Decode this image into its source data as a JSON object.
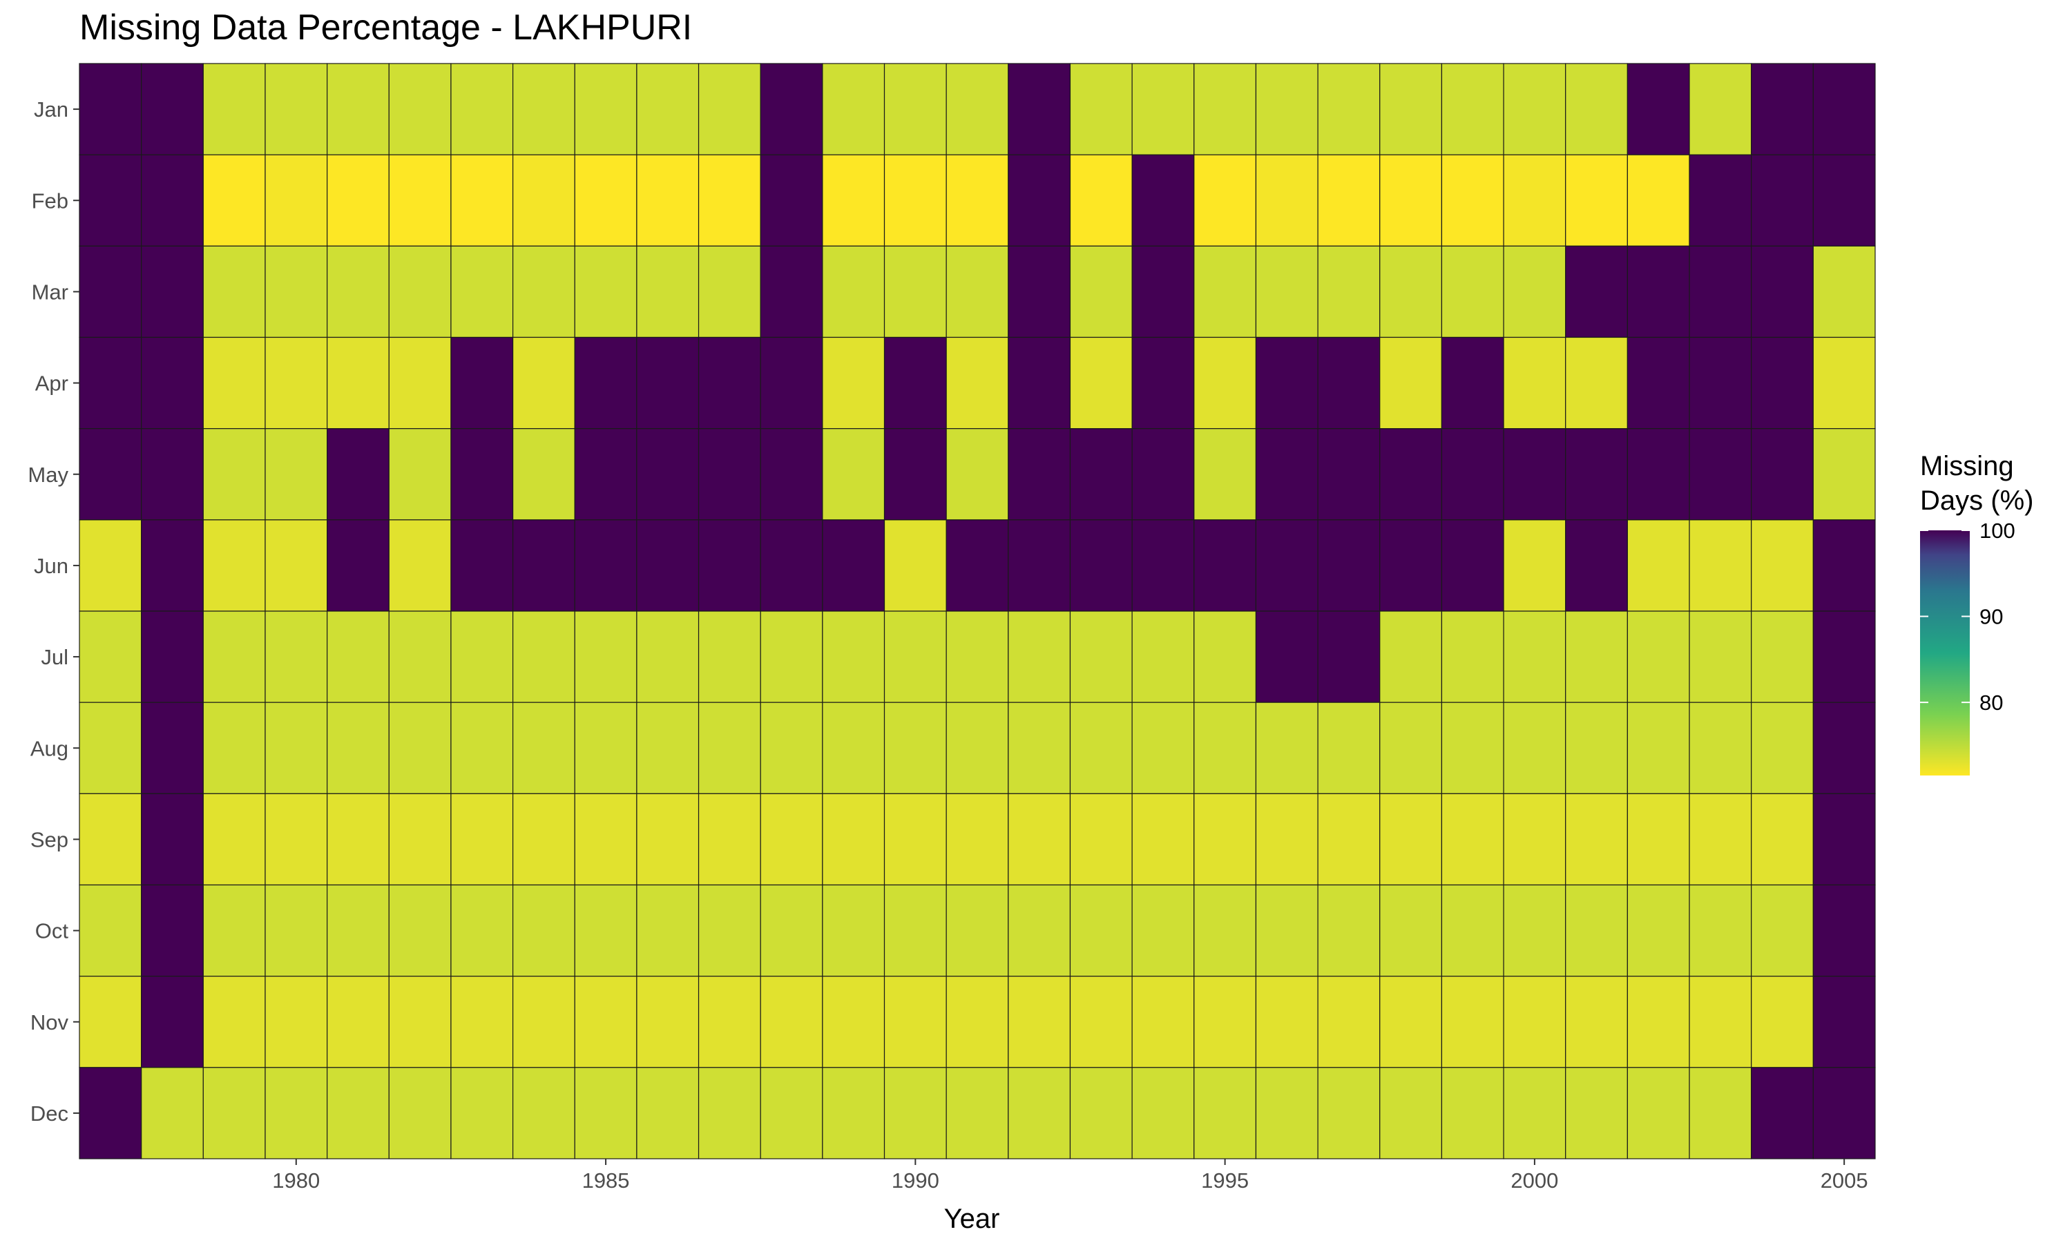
{
  "chart_data": {
    "type": "heatmap",
    "title": "Missing Data Percentage - LAKHPURI",
    "xlabel": "Year",
    "ylabel": "",
    "x": [
      1977,
      1978,
      1979,
      1980,
      1981,
      1982,
      1983,
      1984,
      1985,
      1986,
      1987,
      1988,
      1989,
      1990,
      1991,
      1992,
      1993,
      1994,
      1995,
      1996,
      1997,
      1998,
      1999,
      2000,
      2001,
      2002,
      2003,
      2004,
      2005
    ],
    "x_ticks": [
      1980,
      1985,
      1990,
      1995,
      2000,
      2005
    ],
    "y": [
      "Jan",
      "Feb",
      "Mar",
      "Apr",
      "May",
      "Jun",
      "Jul",
      "Aug",
      "Sep",
      "Oct",
      "Nov",
      "Dec"
    ],
    "values": [
      [
        100,
        100,
        74,
        74,
        74,
        74,
        74,
        74,
        74,
        74,
        74,
        100,
        74,
        74,
        74,
        100,
        74,
        74,
        74,
        74,
        74,
        74,
        74,
        74,
        74,
        100,
        74,
        100,
        100
      ],
      [
        100,
        100,
        71,
        72,
        71,
        71,
        71,
        72,
        71,
        71,
        71,
        100,
        71,
        71,
        71,
        100,
        71,
        100,
        71,
        72,
        71,
        71,
        71,
        72,
        71,
        71,
        100,
        100,
        100
      ],
      [
        100,
        100,
        74,
        74,
        74,
        74,
        74,
        74,
        74,
        74,
        74,
        100,
        74,
        74,
        74,
        100,
        74,
        100,
        74,
        74,
        74,
        74,
        74,
        74,
        100,
        100,
        100,
        100,
        74
      ],
      [
        100,
        100,
        73,
        73,
        73,
        73,
        100,
        73,
        100,
        100,
        100,
        100,
        73,
        100,
        73,
        100,
        73,
        100,
        73,
        100,
        100,
        73,
        100,
        73,
        73,
        100,
        100,
        100,
        73
      ],
      [
        100,
        100,
        74,
        74,
        100,
        74,
        100,
        74,
        100,
        100,
        100,
        100,
        74,
        100,
        74,
        100,
        100,
        100,
        74,
        100,
        100,
        100,
        100,
        100,
        100,
        100,
        100,
        100,
        74
      ],
      [
        73,
        100,
        73,
        73,
        100,
        73,
        100,
        100,
        100,
        100,
        100,
        100,
        100,
        73,
        100,
        100,
        100,
        100,
        100,
        100,
        100,
        100,
        100,
        73,
        100,
        73,
        73,
        73,
        100
      ],
      [
        74,
        100,
        74,
        74,
        74,
        74,
        74,
        74,
        74,
        74,
        74,
        74,
        74,
        74,
        74,
        74,
        74,
        74,
        74,
        100,
        100,
        74,
        74,
        74,
        74,
        74,
        74,
        74,
        100
      ],
      [
        74,
        100,
        74,
        74,
        74,
        74,
        74,
        74,
        74,
        74,
        74,
        74,
        74,
        74,
        74,
        74,
        74,
        74,
        74,
        74,
        74,
        74,
        74,
        74,
        74,
        74,
        74,
        74,
        100
      ],
      [
        73,
        100,
        73,
        73,
        73,
        73,
        73,
        73,
        73,
        73,
        73,
        73,
        73,
        73,
        73,
        73,
        73,
        73,
        73,
        73,
        73,
        73,
        73,
        73,
        73,
        73,
        73,
        73,
        100
      ],
      [
        74,
        100,
        74,
        74,
        74,
        74,
        74,
        74,
        74,
        74,
        74,
        74,
        74,
        74,
        74,
        74,
        74,
        74,
        74,
        74,
        74,
        74,
        74,
        74,
        74,
        74,
        74,
        74,
        100
      ],
      [
        73,
        100,
        73,
        73,
        73,
        73,
        73,
        73,
        73,
        73,
        73,
        73,
        73,
        73,
        73,
        73,
        73,
        73,
        73,
        73,
        73,
        73,
        73,
        73,
        73,
        73,
        73,
        73,
        100
      ],
      [
        100,
        74,
        74,
        74,
        74,
        74,
        74,
        74,
        74,
        74,
        74,
        74,
        74,
        74,
        74,
        74,
        74,
        74,
        74,
        74,
        74,
        74,
        74,
        74,
        74,
        74,
        74,
        100,
        100
      ]
    ],
    "legend": {
      "title_lines": [
        "Missing",
        "Days (%)"
      ],
      "ticks": [
        80,
        90,
        100
      ],
      "range": [
        71.5,
        100
      ],
      "placement": "right"
    },
    "colorscale": "viridis-reversed",
    "grid": false
  }
}
